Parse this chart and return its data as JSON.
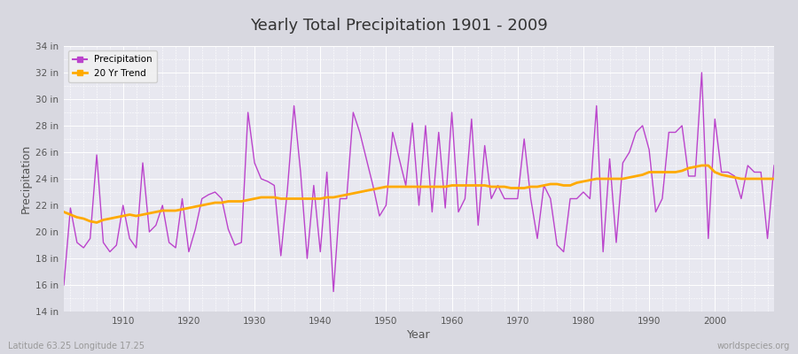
{
  "title": "Yearly Total Precipitation 1901 - 2009",
  "xlabel": "Year",
  "ylabel": "Precipitation",
  "xlim": [
    1901,
    2009
  ],
  "ylim": [
    14,
    34
  ],
  "yticks": [
    14,
    16,
    18,
    20,
    22,
    24,
    26,
    28,
    30,
    32,
    34
  ],
  "ytick_labels": [
    "14 in",
    "16 in",
    "18 in",
    "20 in",
    "22 in",
    "24 in",
    "26 in",
    "28 in",
    "30 in",
    "32 in",
    "34 in"
  ],
  "bg_outer": "#d8d8e0",
  "bg_inner": "#e8e8f0",
  "grid_color": "#ffffff",
  "precip_color": "#bb44cc",
  "trend_color": "#ffaa00",
  "footer_left": "Latitude 63.25 Longitude 17.25",
  "footer_right": "worldspecies.org",
  "years": [
    1901,
    1902,
    1903,
    1904,
    1905,
    1906,
    1907,
    1908,
    1909,
    1910,
    1911,
    1912,
    1913,
    1914,
    1915,
    1916,
    1917,
    1918,
    1919,
    1920,
    1921,
    1922,
    1923,
    1924,
    1925,
    1926,
    1927,
    1928,
    1929,
    1930,
    1931,
    1932,
    1933,
    1934,
    1935,
    1936,
    1937,
    1938,
    1939,
    1940,
    1941,
    1942,
    1943,
    1944,
    1945,
    1946,
    1947,
    1948,
    1949,
    1950,
    1951,
    1952,
    1953,
    1954,
    1955,
    1956,
    1957,
    1958,
    1959,
    1960,
    1961,
    1962,
    1963,
    1964,
    1965,
    1966,
    1967,
    1968,
    1969,
    1970,
    1971,
    1972,
    1973,
    1974,
    1975,
    1976,
    1977,
    1978,
    1979,
    1980,
    1981,
    1982,
    1983,
    1984,
    1985,
    1986,
    1987,
    1988,
    1989,
    1990,
    1991,
    1992,
    1993,
    1994,
    1995,
    1996,
    1997,
    1998,
    1999,
    2000,
    2001,
    2002,
    2003,
    2004,
    2005,
    2006,
    2007,
    2008,
    2009
  ],
  "precip": [
    16.0,
    21.8,
    19.2,
    18.8,
    19.5,
    25.8,
    19.2,
    18.5,
    19.0,
    22.0,
    19.5,
    18.8,
    25.2,
    20.0,
    20.5,
    22.0,
    19.2,
    18.8,
    22.5,
    18.5,
    20.2,
    22.5,
    22.8,
    23.0,
    22.5,
    20.2,
    19.0,
    19.2,
    29.0,
    25.2,
    24.0,
    23.8,
    23.5,
    18.2,
    23.2,
    29.5,
    24.5,
    18.0,
    23.5,
    18.5,
    24.5,
    15.5,
    22.5,
    22.5,
    29.0,
    27.5,
    25.5,
    23.5,
    21.2,
    22.0,
    27.5,
    25.5,
    23.5,
    28.2,
    22.0,
    28.0,
    21.5,
    27.5,
    21.8,
    29.0,
    21.5,
    22.5,
    28.5,
    20.5,
    26.5,
    22.5,
    23.5,
    22.5,
    22.5,
    22.5,
    27.0,
    22.5,
    19.5,
    23.5,
    22.5,
    19.0,
    18.5,
    22.5,
    22.5,
    23.0,
    22.5,
    29.5,
    18.5,
    25.5,
    19.2,
    25.2,
    26.0,
    27.5,
    28.0,
    26.2,
    21.5,
    22.5,
    27.5,
    27.5,
    28.0,
    24.2,
    24.2,
    32.0,
    19.5,
    28.5,
    24.5,
    24.5,
    24.2,
    22.5,
    25.0,
    24.5,
    24.5,
    19.5,
    25.0
  ],
  "trend_years": [
    1901,
    1902,
    1903,
    1904,
    1905,
    1906,
    1907,
    1908,
    1909,
    1910,
    1911,
    1912,
    1913,
    1914,
    1915,
    1916,
    1917,
    1918,
    1919,
    1920,
    1921,
    1922,
    1923,
    1924,
    1925,
    1926,
    1927,
    1928,
    1929,
    1930,
    1931,
    1932,
    1933,
    1934,
    1935,
    1936,
    1937,
    1938,
    1939,
    1940,
    1941,
    1942,
    1943,
    1944,
    1945,
    1946,
    1947,
    1948,
    1949,
    1950,
    1951,
    1952,
    1953,
    1954,
    1955,
    1956,
    1957,
    1958,
    1959,
    1960,
    1961,
    1962,
    1963,
    1964,
    1965,
    1966,
    1967,
    1968,
    1969,
    1970,
    1971,
    1972,
    1973,
    1974,
    1975,
    1976,
    1977,
    1978,
    1979,
    1980,
    1981,
    1982,
    1983,
    1984,
    1985,
    1986,
    1987,
    1988,
    1989,
    1990,
    1991,
    1992,
    1993,
    1994,
    1995,
    1996,
    1997,
    1998,
    1999,
    2000,
    2001,
    2002,
    2003,
    2004,
    2005,
    2006,
    2007,
    2008,
    2009
  ],
  "trend": [
    21.5,
    21.3,
    21.1,
    21.0,
    20.8,
    20.7,
    20.9,
    21.0,
    21.1,
    21.2,
    21.3,
    21.2,
    21.3,
    21.4,
    21.5,
    21.6,
    21.6,
    21.6,
    21.7,
    21.8,
    21.9,
    22.0,
    22.1,
    22.2,
    22.2,
    22.3,
    22.3,
    22.3,
    22.4,
    22.5,
    22.6,
    22.6,
    22.6,
    22.5,
    22.5,
    22.5,
    22.5,
    22.5,
    22.5,
    22.5,
    22.6,
    22.6,
    22.7,
    22.8,
    22.9,
    23.0,
    23.1,
    23.2,
    23.3,
    23.4,
    23.4,
    23.4,
    23.4,
    23.4,
    23.4,
    23.4,
    23.4,
    23.4,
    23.4,
    23.5,
    23.5,
    23.5,
    23.5,
    23.5,
    23.5,
    23.4,
    23.4,
    23.4,
    23.3,
    23.3,
    23.3,
    23.4,
    23.4,
    23.5,
    23.6,
    23.6,
    23.5,
    23.5,
    23.7,
    23.8,
    23.9,
    24.0,
    24.0,
    24.0,
    24.0,
    24.0,
    24.1,
    24.2,
    24.3,
    24.5,
    24.5,
    24.5,
    24.5,
    24.5,
    24.6,
    24.8,
    24.9,
    25.0,
    25.0,
    24.5,
    24.3,
    24.2,
    24.1,
    24.0,
    24.0,
    24.0,
    24.0,
    24.0,
    24.0
  ]
}
